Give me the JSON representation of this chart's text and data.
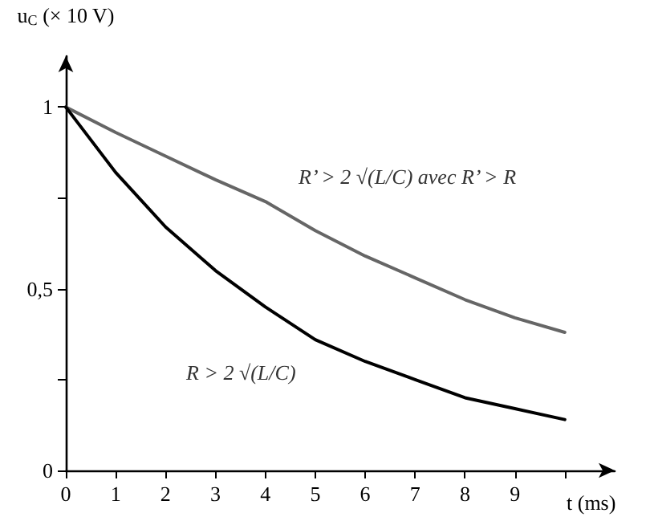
{
  "chart_data": {
    "type": "line",
    "xlabel": "t (ms)",
    "ylabel": "u$_{C}$ (× 10 V)",
    "x": [
      0,
      1,
      2,
      3,
      4,
      5,
      6,
      7,
      8,
      9,
      10
    ],
    "series": [
      {
        "color": "#666666",
        "values": [
          1,
          0.93,
          0.865,
          0.8,
          0.74,
          0.66,
          0.59,
          0.53,
          0.47,
          0.42,
          0.38
        ]
      },
      {
        "color": "#000000",
        "values": [
          1,
          0.82,
          0.67,
          0.55,
          0.45,
          0.36,
          0.3,
          0.25,
          0.2,
          0.17,
          0.14
        ]
      }
    ],
    "xlim": [
      0,
      11
    ],
    "xticks": [
      0,
      1,
      2,
      3,
      4,
      5,
      6,
      7,
      8,
      9,
      {
        "value": 10,
        "label": null
      }
    ],
    "ylim": [
      0,
      1.14
    ],
    "yticks": [
      0,
      {
        "value": 0.25,
        "label": null
      },
      {
        "value": 0.5,
        "label": "0,5"
      },
      {
        "value": 0.75,
        "label": null
      },
      1
    ],
    "annotations": [
      "R’ > 2 √(L/C) avec R’ > R",
      "R > 2 √(L/C)"
    ],
    "grid": false,
    "marker": "none",
    "line_style": "solid"
  }
}
